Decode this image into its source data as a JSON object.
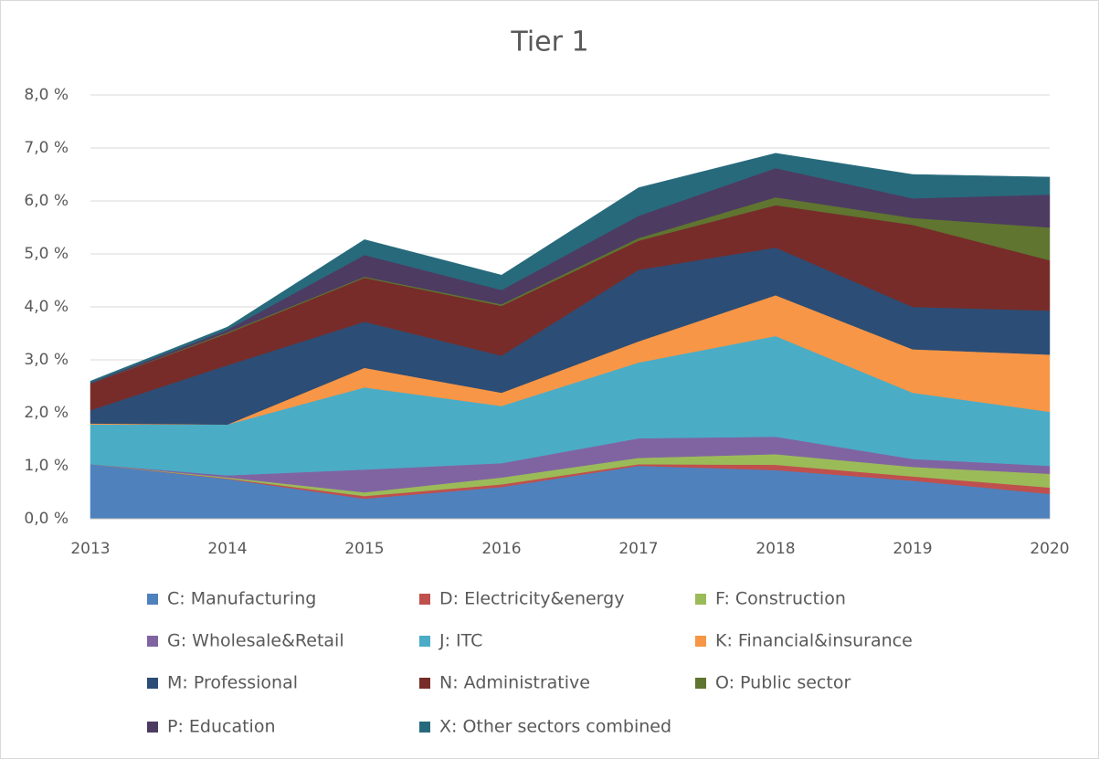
{
  "chart_data": {
    "type": "stacked_area",
    "title": "Tier 1",
    "categories": [
      "2013",
      "2014",
      "2015",
      "2016",
      "2017",
      "2018",
      "2019",
      "2020"
    ],
    "ylim": [
      0,
      8
    ],
    "yticks": [
      {
        "value": 0,
        "label": "0,0 %"
      },
      {
        "value": 1,
        "label": "1,0 %"
      },
      {
        "value": 2,
        "label": "2,0 %"
      },
      {
        "value": 3,
        "label": "3,0 %"
      },
      {
        "value": 4,
        "label": "4,0 %"
      },
      {
        "value": 5,
        "label": "5,0 %"
      },
      {
        "value": 6,
        "label": "6,0 %"
      },
      {
        "value": 7,
        "label": "7,0 %"
      },
      {
        "value": 8,
        "label": "8,0 %"
      }
    ],
    "grid": true,
    "series": [
      {
        "name": "C: Manufacturing",
        "color": "#4f81bd",
        "values": [
          1.03,
          0.75,
          0.38,
          0.6,
          1.0,
          0.92,
          0.72,
          0.47
        ]
      },
      {
        "name": "D: Electricity&energy",
        "color": "#c0504d",
        "values": [
          0,
          0.01,
          0.05,
          0.05,
          0.03,
          0.1,
          0.08,
          0.12
        ]
      },
      {
        "name": "F: Construction",
        "color": "#9bbb59",
        "values": [
          0,
          0.02,
          0.07,
          0.13,
          0.12,
          0.2,
          0.18,
          0.26
        ]
      },
      {
        "name": "G: Wholesale&Retail",
        "color": "#8064a2",
        "values": [
          0,
          0.04,
          0.43,
          0.27,
          0.37,
          0.33,
          0.15,
          0.15
        ]
      },
      {
        "name": "J: ITC",
        "color": "#4bacc6",
        "values": [
          0.75,
          0.96,
          1.55,
          1.08,
          1.43,
          1.9,
          1.25,
          1.02
        ]
      },
      {
        "name": "K: Financial&insurance",
        "color": "#f79646",
        "values": [
          0.02,
          0,
          0.37,
          0.25,
          0.4,
          0.77,
          0.82,
          1.08
        ]
      },
      {
        "name": "M: Professional",
        "color": "#2c4d75",
        "values": [
          0.25,
          1.12,
          0.87,
          0.7,
          1.35,
          0.9,
          0.8,
          0.83
        ]
      },
      {
        "name": "N: Administrative",
        "color": "#772c2a",
        "values": [
          0.5,
          0.6,
          0.83,
          0.94,
          0.55,
          0.8,
          1.55,
          0.95
        ]
      },
      {
        "name": "O: Public sector",
        "color": "#5f7530",
        "values": [
          0,
          0.02,
          0.02,
          0.03,
          0.05,
          0.15,
          0.13,
          0.62
        ]
      },
      {
        "name": "P: Education",
        "color": "#4d3b62",
        "values": [
          0.02,
          0.05,
          0.41,
          0.27,
          0.42,
          0.55,
          0.37,
          0.62
        ]
      },
      {
        "name": "X: Other sectors combined",
        "color": "#276a7c",
        "values": [
          0.03,
          0.05,
          0.29,
          0.28,
          0.53,
          0.28,
          0.45,
          0.33
        ]
      }
    ]
  }
}
